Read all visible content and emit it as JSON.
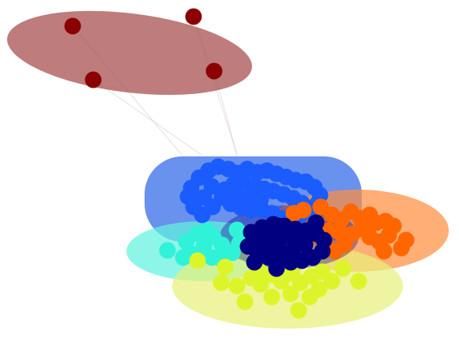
{
  "chart_data": {
    "type": "scatter",
    "title": "",
    "xlabel": "",
    "ylabel": "",
    "grid": false,
    "legend": "none",
    "clusters": [
      {
        "id": "dark-red",
        "color": "#8b0000",
        "hull_color": "#a54a4a",
        "points": [
          [
            92,
            33
          ],
          [
            245,
            21
          ],
          [
            118,
            101
          ],
          [
            271,
            90
          ]
        ]
      },
      {
        "id": "blue",
        "color": "#1a5cff",
        "hull_color": "#2f67e8",
        "points": [
          [
            242,
            238
          ],
          [
            252,
            225
          ],
          [
            264,
            216
          ],
          [
            276,
            211
          ],
          [
            289,
            214
          ],
          [
            300,
            219
          ],
          [
            313,
            214
          ],
          [
            326,
            218
          ],
          [
            338,
            216
          ],
          [
            350,
            220
          ],
          [
            362,
            224
          ],
          [
            374,
            228
          ],
          [
            387,
            230
          ],
          [
            398,
            237
          ],
          [
            405,
            247
          ],
          [
            401,
            259
          ],
          [
            392,
            268
          ],
          [
            380,
            272
          ],
          [
            368,
            275
          ],
          [
            356,
            276
          ],
          [
            344,
            270
          ],
          [
            331,
            265
          ],
          [
            318,
            266
          ],
          [
            305,
            263
          ],
          [
            292,
            258
          ],
          [
            281,
            250
          ],
          [
            285,
            240
          ],
          [
            296,
            233
          ],
          [
            309,
            231
          ],
          [
            322,
            235
          ],
          [
            334,
            239
          ],
          [
            346,
            242
          ],
          [
            359,
            246
          ],
          [
            371,
            251
          ],
          [
            382,
            257
          ],
          [
            258,
            250
          ],
          [
            245,
            262
          ],
          [
            256,
            272
          ],
          [
            269,
            262
          ],
          [
            238,
            249
          ],
          [
            268,
            236
          ],
          [
            300,
            247
          ],
          [
            315,
            251
          ],
          [
            330,
            252
          ]
        ]
      },
      {
        "id": "cyan",
        "color": "#2ff2d8",
        "hull_color": "#62f2df",
        "points": [
          [
            212,
            317
          ],
          [
            232,
            326
          ],
          [
            244,
            322
          ],
          [
            236,
            306
          ],
          [
            250,
            296
          ],
          [
            258,
            312
          ],
          [
            270,
            300
          ],
          [
            281,
            310
          ],
          [
            294,
            320
          ],
          [
            303,
            308
          ],
          [
            300,
            291
          ],
          [
            262,
            292
          ],
          [
            248,
            325
          ],
          [
            268,
            326
          ],
          [
            280,
            328
          ]
        ]
      },
      {
        "id": "orange",
        "color": "#ff6600",
        "hull_color": "#ff8f40",
        "points": [
          [
            372,
            270
          ],
          [
            384,
            266
          ],
          [
            406,
            262
          ],
          [
            420,
            272
          ],
          [
            432,
            278
          ],
          [
            444,
            268
          ],
          [
            456,
            276
          ],
          [
            468,
            272
          ],
          [
            476,
            282
          ],
          [
            488,
            280
          ],
          [
            498,
            286
          ],
          [
            492,
            298
          ],
          [
            480,
            306
          ],
          [
            468,
            300
          ],
          [
            458,
            290
          ],
          [
            446,
            296
          ],
          [
            436,
            310
          ],
          [
            424,
            318
          ],
          [
            412,
            310
          ],
          [
            404,
            300
          ],
          [
            416,
            292
          ],
          [
            430,
            294
          ],
          [
            514,
            304
          ],
          [
            508,
            314
          ],
          [
            486,
            318
          ]
        ]
      },
      {
        "id": "yellow-green",
        "color": "#dcf52a",
        "hull_color": "#e8f07a",
        "points": [
          [
            285,
            338
          ],
          [
            280,
            358
          ],
          [
            300,
            362
          ],
          [
            318,
            352
          ],
          [
            330,
            360
          ],
          [
            344,
            348
          ],
          [
            356,
            356
          ],
          [
            370,
            346
          ],
          [
            380,
            358
          ],
          [
            394,
            350
          ],
          [
            408,
            344
          ],
          [
            420,
            356
          ],
          [
            434,
            340
          ],
          [
            454,
            356
          ],
          [
            404,
            366
          ],
          [
            392,
            376
          ],
          [
            368,
            372
          ],
          [
            344,
            376
          ],
          [
            310,
            382
          ],
          [
            378,
            393
          ],
          [
            250,
            330
          ],
          [
            330,
            345
          ]
        ]
      },
      {
        "id": "navy",
        "color": "#000080",
        "hull_color": "#00008b",
        "points": [
          [
            318,
            294
          ],
          [
            332,
            288
          ],
          [
            346,
            284
          ],
          [
            360,
            286
          ],
          [
            374,
            290
          ],
          [
            388,
            292
          ],
          [
            400,
            296
          ],
          [
            410,
            304
          ],
          [
            408,
            318
          ],
          [
            396,
            326
          ],
          [
            382,
            330
          ],
          [
            368,
            332
          ],
          [
            354,
            330
          ],
          [
            340,
            326
          ],
          [
            326,
            320
          ],
          [
            314,
            312
          ],
          [
            330,
            306
          ],
          [
            344,
            302
          ],
          [
            358,
            300
          ],
          [
            372,
            304
          ],
          [
            386,
            310
          ],
          [
            370,
            318
          ],
          [
            354,
            316
          ],
          [
            340,
            314
          ],
          [
            352,
            286
          ],
          [
            400,
            282
          ],
          [
            322,
            332
          ],
          [
            350,
            340
          ]
        ]
      }
    ],
    "faint_edges": [
      [
        [
          118,
          101
        ],
        [
          255,
          196
        ]
      ],
      [
        [
          245,
          21
        ],
        [
          300,
          196
        ]
      ],
      [
        [
          271,
          90
        ],
        [
          300,
          196
        ]
      ],
      [
        [
          92,
          33
        ],
        [
          230,
          196
        ]
      ]
    ]
  }
}
